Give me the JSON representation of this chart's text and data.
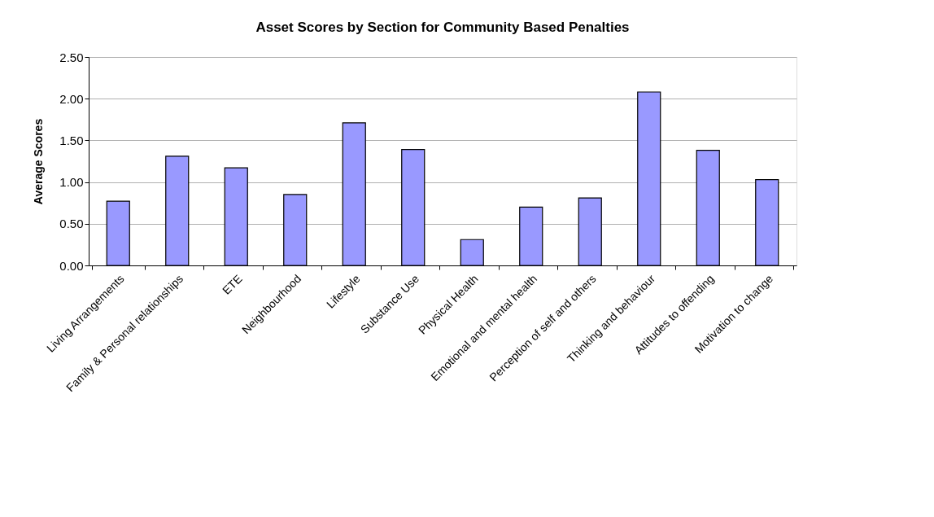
{
  "chart_data": {
    "type": "bar",
    "title": "Asset Scores by Section for Community Based Penalties",
    "ylabel": "Average Scores",
    "categories": [
      "Living Arrangements",
      "Family & Personal relationships",
      "ETE",
      "Neighbourhood",
      "Lifestyle",
      "Substance Use",
      "Physical Health",
      "Emotional and mental health",
      "Perception of self and others",
      "Thinking and behaviour",
      "Attitudes to offending",
      "Motivation to change"
    ],
    "values": [
      0.77,
      1.31,
      1.17,
      0.85,
      1.71,
      1.39,
      0.31,
      0.7,
      0.81,
      2.08,
      1.38,
      1.03
    ],
    "color": "#9999ff",
    "ylim": [
      0,
      2.5
    ],
    "yticks": [
      {
        "value": 0,
        "label": "0.00"
      },
      {
        "value": 0.5,
        "label": "0.50"
      },
      {
        "value": 1,
        "label": "1.00"
      },
      {
        "value": 1.5,
        "label": "1.50"
      },
      {
        "value": 2,
        "label": "2.00"
      },
      {
        "value": 2.5,
        "label": "2.50"
      }
    ],
    "grid": "y"
  }
}
